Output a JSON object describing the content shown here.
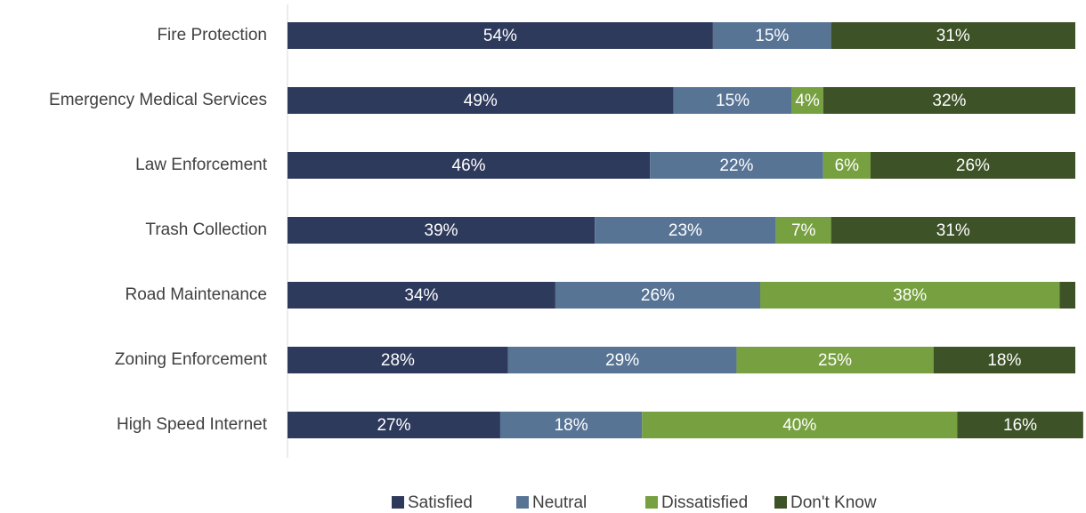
{
  "chart_data": {
    "type": "stacked_bar_horizontal",
    "categories": [
      "Fire Protection",
      "Emergency Medical Services",
      "Law Enforcement",
      "Trash Collection",
      "Road Maintenance",
      "Zoning Enforcement",
      "High Speed Internet"
    ],
    "series": [
      {
        "name": "Satisfied",
        "color": "#2e3a5c",
        "values": [
          54,
          49,
          46,
          39,
          34,
          28,
          27
        ],
        "value_labels": [
          "54%",
          "49%",
          "46%",
          "39%",
          "34%",
          "28%",
          "27%"
        ]
      },
      {
        "name": "Neutral",
        "color": "#587495",
        "values": [
          15,
          15,
          22,
          23,
          26,
          29,
          18
        ],
        "value_labels": [
          "15%",
          "15%",
          "22%",
          "23%",
          "26%",
          "29%",
          "18%"
        ]
      },
      {
        "name": "Dissatisfied",
        "color": "#77a040",
        "values": [
          0,
          4,
          6,
          7,
          38,
          25,
          40
        ],
        "value_labels": [
          null,
          "4%",
          "6%",
          "7%",
          "38%",
          "25%",
          "40%"
        ]
      },
      {
        "name": "Don't Know",
        "color": "#3d5227",
        "values": [
          31,
          32,
          26,
          31,
          2,
          18,
          16
        ],
        "value_labels": [
          "31%",
          "32%",
          "26%",
          "31%",
          null,
          "18%",
          "16%"
        ]
      }
    ],
    "legend": "bottom"
  }
}
